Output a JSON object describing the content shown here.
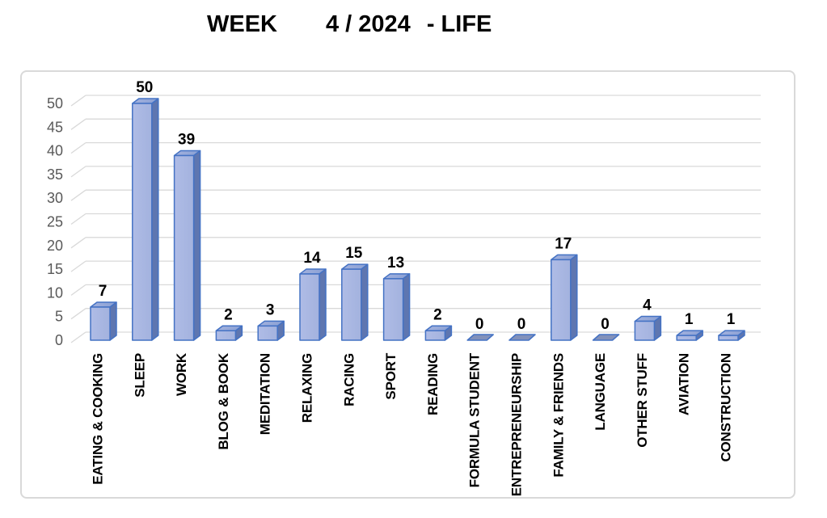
{
  "title": {
    "part1": "WEEK",
    "part2": "4 / 2024",
    "part3": "- LIFE"
  },
  "chart_data": {
    "type": "bar",
    "style": "3d-bar",
    "title": "WEEK 4 / 2024 - LIFE",
    "xlabel": "",
    "ylabel": "",
    "categories": [
      "EATING & COOKING",
      "SLEEP",
      "WORK",
      "BLOG & BOOK",
      "MEDITATION",
      "RELAXING",
      "RACING",
      "SPORT",
      "READING",
      "FORMULA STUDENT",
      "ENTREPRENEURSHIP",
      "FAMILY & FRIENDS",
      "LANGUAGE",
      "OTHER STUFF",
      "AVIATION",
      "CONSTRUCTION"
    ],
    "values": [
      7,
      50,
      39,
      2,
      3,
      14,
      15,
      13,
      2,
      0,
      0,
      17,
      0,
      4,
      1,
      1
    ],
    "data_labels": [
      7,
      50,
      39,
      2,
      3,
      14,
      15,
      13,
      2,
      0,
      0,
      17,
      0,
      4,
      1,
      1
    ],
    "ylim": [
      0,
      50
    ],
    "yticks": [
      0,
      5,
      10,
      15,
      20,
      25,
      30,
      35,
      40,
      45,
      50
    ],
    "grid": true,
    "legend": false
  },
  "colors": {
    "bar_front": "#A3B2DE",
    "bar_front_light": "#AFBCE6",
    "bar_top": "#8AA0D4",
    "bar_side": "#5E76B0",
    "bar_flat_zero": "#8291BA",
    "bar_stroke": "#4472C4",
    "gridline": "#D9D9D9",
    "tick_text": "#595959",
    "label_text": "#000000",
    "frame_border": "#D9D9D9",
    "background": "#FFFFFF"
  }
}
